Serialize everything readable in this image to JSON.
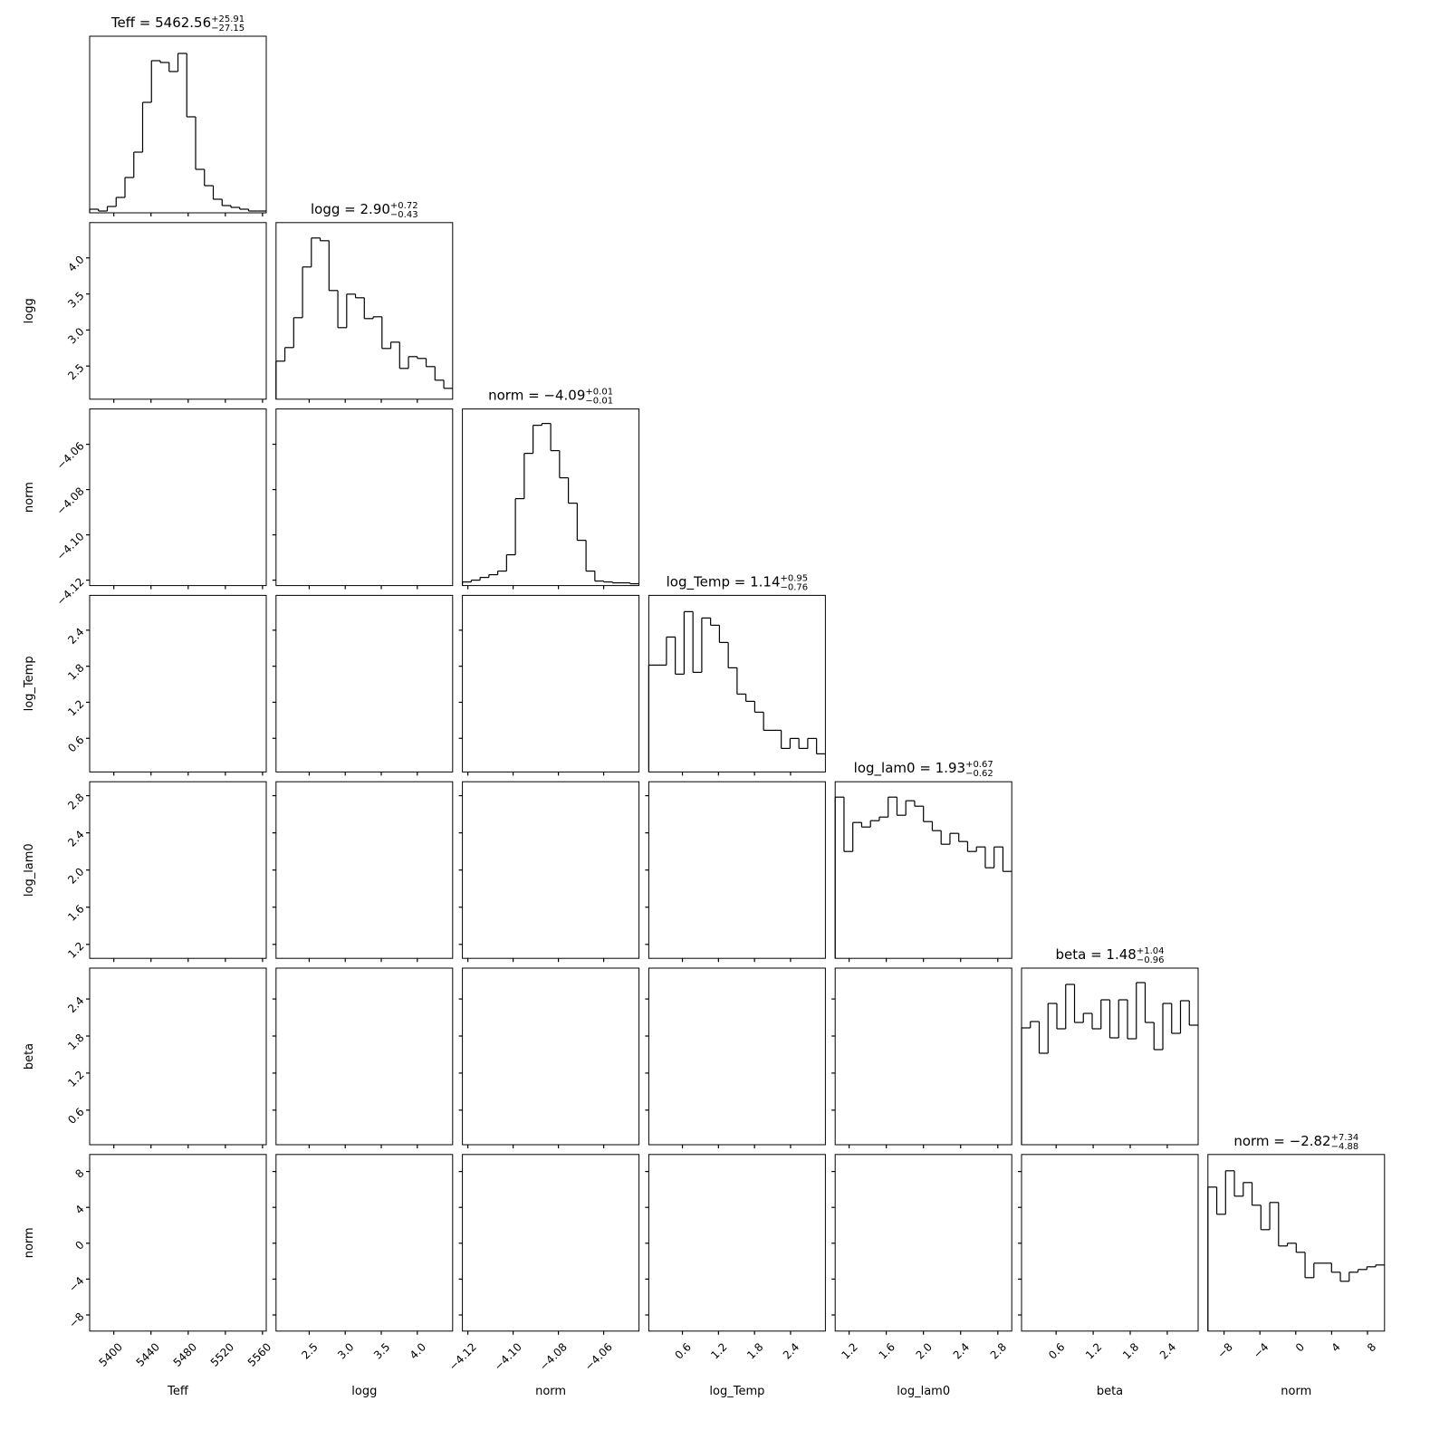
{
  "chart_data": {
    "type": "corner",
    "params": [
      {
        "label": "Teff",
        "title": "Teff = 5462.56",
        "title_plus": "+25.91",
        "title_minus": "−27.15",
        "lim": [
          5374,
          5564
        ],
        "ticks": [
          5400,
          5440,
          5480,
          5520,
          5560
        ],
        "bins": [
          5374,
          5383.5,
          5393,
          5402.5,
          5412,
          5421.5,
          5431,
          5440.5,
          5450,
          5459.5,
          5469,
          5478.5,
          5488,
          5497.5,
          5507,
          5516.5,
          5526,
          5535.5,
          5545,
          5554.5,
          5564
        ],
        "counts": [
          4,
          2,
          7,
          17,
          39,
          67,
          122,
          168,
          166,
          156,
          176,
          106,
          48,
          30,
          15,
          8,
          6,
          4,
          2,
          2
        ],
        "hist_ylim": [
          0,
          195
        ]
      },
      {
        "label": "logg",
        "title": "logg = 2.90",
        "title_plus": "+0.72",
        "title_minus": "−0.43",
        "lim": [
          2.04,
          4.49
        ],
        "ticks": [
          2.5,
          {
            "value": 3,
            "label": "3.0"
          },
          3.5,
          {
            "value": 4,
            "label": "4.0"
          }
        ],
        "bins": [
          2.04,
          2.1625,
          2.285,
          2.4075,
          2.53,
          2.6525,
          2.775,
          2.8975,
          3.02,
          3.1425,
          3.265,
          3.3875,
          3.51,
          3.6325,
          3.755,
          3.8775,
          4,
          4.1225,
          4.245,
          4.3675,
          4.49
        ],
        "counts": [
          42,
          57,
          90,
          146,
          178,
          175,
          120,
          79,
          116,
          112,
          89,
          91,
          56,
          63,
          34,
          47,
          45,
          36,
          21,
          12
        ],
        "hist_ylim": [
          0,
          195
        ]
      },
      {
        "label": "norm",
        "title": "norm = −4.09",
        "title_plus": "+0.01",
        "title_minus": "−0.01",
        "lim": [
          -4.1224,
          -4.0444
        ],
        "ticks": [
          {
            "value": -4.12,
            "label": "−4.12"
          },
          {
            "value": -4.1,
            "label": "−4.10"
          },
          {
            "value": -4.08,
            "label": "−4.08"
          },
          {
            "value": -4.06,
            "label": "−4.06"
          }
        ],
        "bins": [
          -4.1224,
          -4.1185,
          -4.1146,
          -4.1107,
          -4.1068,
          -4.1029,
          -4.099,
          -4.0951,
          -4.0912,
          -4.0873,
          -4.0834,
          -4.0795,
          -4.0756,
          -4.0717,
          -4.0678,
          -4.0639,
          -4.06,
          -4.0561,
          -4.0522,
          -4.0483,
          -4.0444
        ],
        "counts": [
          4,
          6,
          9,
          12,
          16,
          34,
          96,
          146,
          177,
          179,
          149,
          119,
          91,
          50,
          16,
          5,
          4,
          3,
          3,
          2
        ],
        "hist_ylim": [
          0,
          195
        ]
      },
      {
        "label": "log_Temp",
        "title": "log_Temp = 1.14",
        "title_plus": "+0.95",
        "title_minus": "−0.76",
        "lim": [
          0.04,
          2.98
        ],
        "ticks": [
          0.6,
          1.2,
          1.8,
          2.4
        ],
        "bins": [
          0.04,
          0.187,
          0.334,
          0.481,
          0.628,
          0.775,
          0.922,
          1.069,
          1.216,
          1.363,
          1.51,
          1.657,
          1.804,
          1.951,
          2.098,
          2.245,
          2.392,
          2.539,
          2.686,
          2.833,
          2.98
        ],
        "counts": [
          118,
          118,
          149,
          108,
          177,
          110,
          170,
          162,
          143,
          115,
          86,
          78,
          66,
          46,
          46,
          26,
          37,
          26,
          37,
          20
        ],
        "hist_ylim": [
          0,
          195
        ]
      },
      {
        "label": "log_lam0",
        "title": "log_lam0 = 1.93",
        "title_plus": "+0.67",
        "title_minus": "−0.62",
        "lim": [
          1.05,
          2.95
        ],
        "ticks": [
          1.2,
          1.6,
          {
            "value": 2,
            "label": "2.0"
          },
          2.4,
          2.8
        ],
        "bins": [
          1.05,
          1.145,
          1.24,
          1.335,
          1.43,
          1.525,
          1.62,
          1.715,
          1.81,
          1.905,
          2,
          2.095,
          2.19,
          2.285,
          2.38,
          2.475,
          2.57,
          2.665,
          2.76,
          2.855,
          2.95
        ],
        "counts": [
          178,
          118,
          150,
          145,
          152,
          156,
          178,
          158,
          174,
          168,
          151,
          141,
          126,
          138,
          129,
          118,
          123,
          100,
          123,
          96
        ],
        "hist_ylim": [
          0,
          195
        ]
      },
      {
        "label": "beta",
        "title": "beta = 1.48",
        "title_plus": "+1.04",
        "title_minus": "−0.96",
        "lim": [
          0.04,
          2.9
        ],
        "ticks": [
          0.6,
          1.2,
          1.8,
          2.4
        ],
        "bins": [
          0.04,
          0.183,
          0.326,
          0.469,
          0.612,
          0.755,
          0.898,
          1.041,
          1.184,
          1.327,
          1.47,
          1.613,
          1.756,
          1.899,
          2.042,
          2.185,
          2.328,
          2.471,
          2.614,
          2.757,
          2.9
        ],
        "counts": [
          129,
          136,
          101,
          156,
          128,
          177,
          135,
          145,
          128,
          160,
          118,
          160,
          117,
          179,
          135,
          105,
          156,
          123,
          159,
          132
        ],
        "hist_ylim": [
          0,
          195
        ]
      },
      {
        "label": "norm",
        "title": "norm = −2.82",
        "title_plus": "+7.34",
        "title_minus": "−4.88",
        "lim": [
          -9.8,
          9.9
        ],
        "ticks": [
          {
            "value": -8,
            "label": "−8"
          },
          {
            "value": -4,
            "label": "−4"
          },
          0,
          4,
          8
        ],
        "bins": [
          -9.8,
          -8.815,
          -7.83,
          -6.845,
          -5.86,
          -4.875,
          -3.89,
          -2.905,
          -1.92,
          -0.935,
          0.05,
          1.035,
          2.02,
          3.005,
          3.99,
          4.975,
          5.96,
          6.945,
          7.93,
          8.915,
          9.9
        ],
        "counts": [
          159,
          129,
          177,
          149,
          164,
          139,
          112,
          142,
          94,
          97,
          87,
          59,
          75,
          75,
          65,
          55,
          65,
          68,
          71,
          73
        ],
        "hist_ylim": [
          0,
          195
        ]
      }
    ]
  }
}
